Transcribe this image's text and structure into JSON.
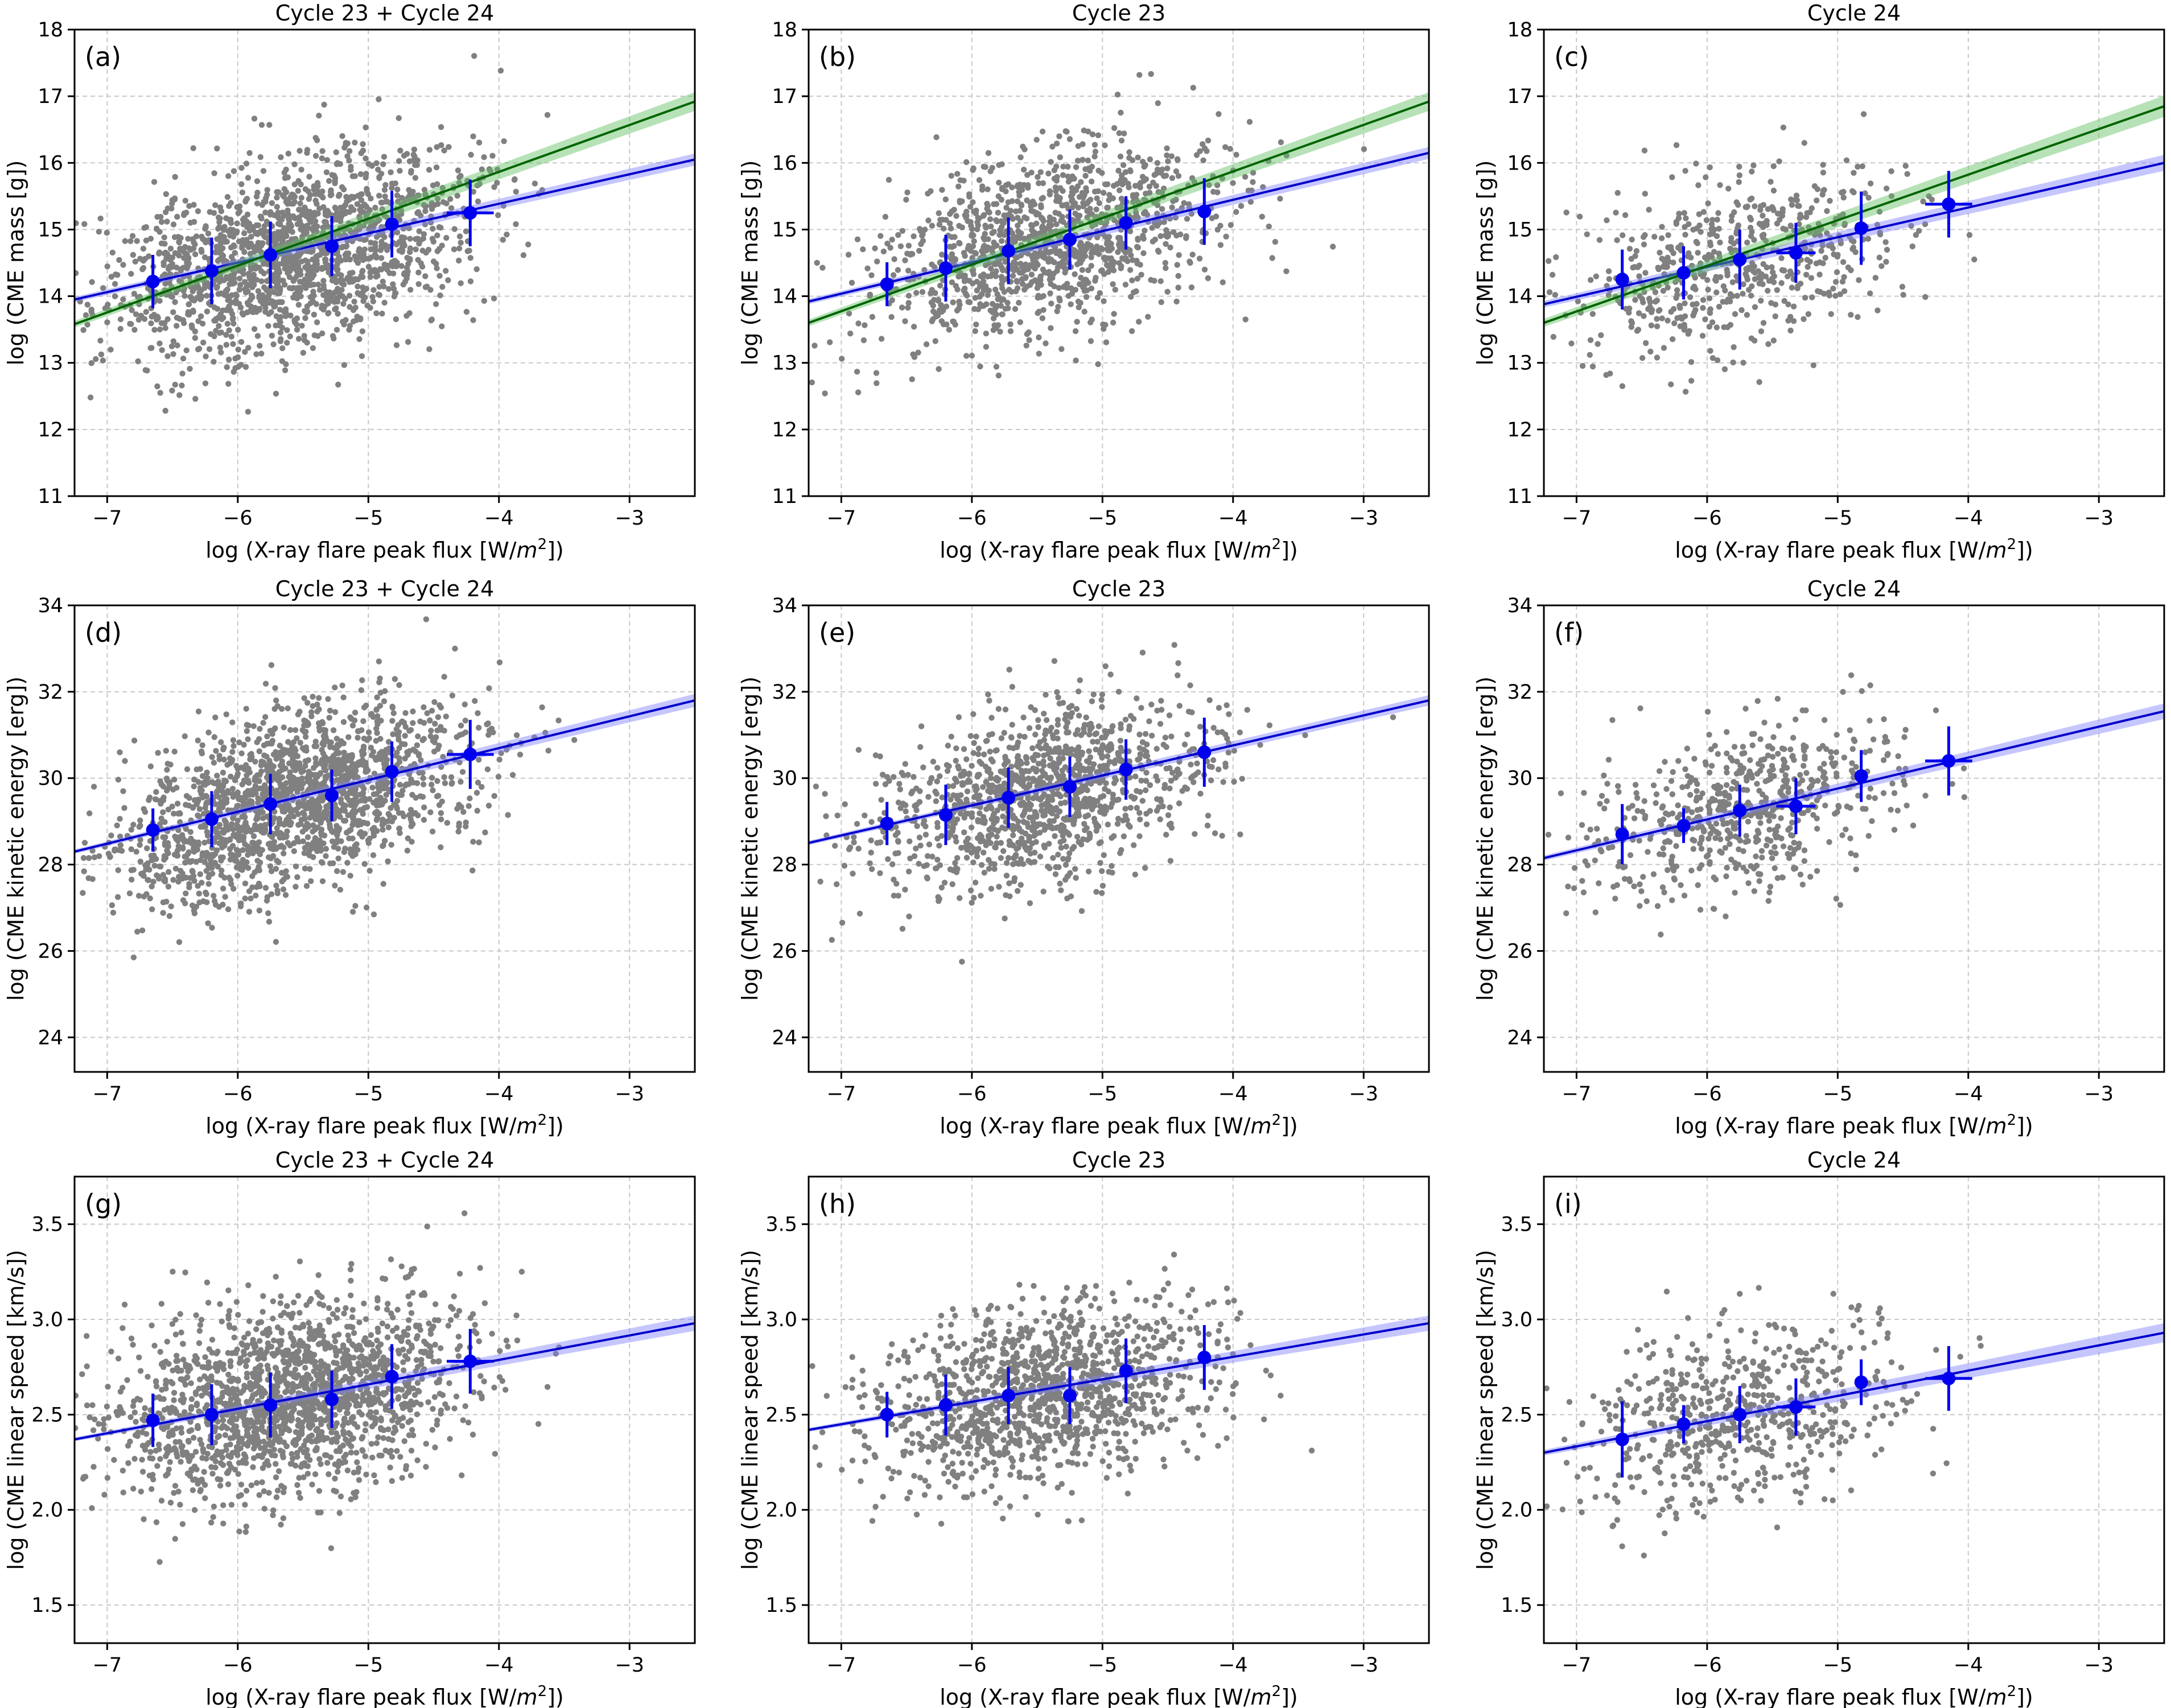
{
  "figure": {
    "colors": {
      "scatter": "#808080",
      "binned": "#0000ee",
      "fit_blue": "#0000cc",
      "band_blue": "#8080ff",
      "fit_green": "#006400",
      "band_green": "#5fbf5f"
    }
  },
  "chart_data": [
    {
      "type": "scatter",
      "panel": "(a)",
      "title": "Cycle 23 + Cycle 24",
      "xlabel": "log (X-ray flare peak flux [W/m²])",
      "ylabel": "log (CME mass [g])",
      "xlim": [
        -7.25,
        -2.5
      ],
      "ylim": [
        11,
        18
      ],
      "xticks": [
        -7,
        -6,
        -5,
        -4,
        -3
      ],
      "xtick_labels": [
        "−7",
        "−6",
        "−5",
        "−4",
        "−3"
      ],
      "yticks": [
        11,
        12,
        13,
        14,
        15,
        16,
        17,
        18
      ],
      "ytick_labels": [
        "11",
        "12",
        "13",
        "14",
        "15",
        "16",
        "17",
        "18"
      ],
      "scatter": {
        "n": 1800,
        "x_mean": -5.6,
        "x_sd": 0.68,
        "slope": 0.44,
        "intercept": 17.1,
        "noise_sd": 0.68,
        "seed": 11
      },
      "binned": {
        "x": [
          -6.65,
          -6.2,
          -5.75,
          -5.28,
          -4.82,
          -4.22
        ],
        "y": [
          14.22,
          14.38,
          14.62,
          14.75,
          15.08,
          15.25
        ],
        "yerr": [
          0.4,
          0.5,
          0.5,
          0.45,
          0.5,
          0.5
        ],
        "xerr": [
          0.0,
          0.0,
          0.0,
          0.0,
          0.0,
          0.18
        ]
      },
      "fits": [
        {
          "name": "fit 1",
          "color": "blue",
          "x": [
            -7.25,
            -2.5
          ],
          "y": [
            13.95,
            16.05
          ],
          "band": [
            0.04,
            0.09
          ]
        },
        {
          "name": "fit 2",
          "color": "green",
          "x": [
            -7.25,
            -2.5
          ],
          "y": [
            13.58,
            16.92
          ],
          "band": [
            0.05,
            0.14
          ]
        }
      ]
    },
    {
      "type": "scatter",
      "panel": "(b)",
      "title": "Cycle 23",
      "xlabel": "log (X-ray flare peak flux [W/m²])",
      "ylabel": "log (CME mass [g])",
      "xlim": [
        -7.25,
        -2.5
      ],
      "ylim": [
        11,
        18
      ],
      "xticks": [
        -7,
        -6,
        -5,
        -4,
        -3
      ],
      "xtick_labels": [
        "−7",
        "−6",
        "−5",
        "−4",
        "−3"
      ],
      "yticks": [
        11,
        12,
        13,
        14,
        15,
        16,
        17,
        18
      ],
      "ytick_labels": [
        "11",
        "12",
        "13",
        "14",
        "15",
        "16",
        "17",
        "18"
      ],
      "scatter": {
        "n": 1250,
        "x_mean": -5.45,
        "x_sd": 0.65,
        "slope": 0.46,
        "intercept": 17.3,
        "noise_sd": 0.66,
        "seed": 23
      },
      "binned": {
        "x": [
          -6.65,
          -6.2,
          -5.72,
          -5.25,
          -4.82,
          -4.22
        ],
        "y": [
          14.18,
          14.42,
          14.68,
          14.85,
          15.1,
          15.27
        ],
        "yerr": [
          0.33,
          0.5,
          0.5,
          0.45,
          0.4,
          0.5
        ],
        "xerr": [
          0.0,
          0.0,
          0.0,
          0.0,
          0.0,
          0.0
        ]
      },
      "fits": [
        {
          "name": "fit 1",
          "color": "blue",
          "x": [
            -7.25,
            -2.5
          ],
          "y": [
            13.92,
            16.15
          ],
          "band": [
            0.04,
            0.09
          ]
        },
        {
          "name": "fit 2",
          "color": "green",
          "x": [
            -7.25,
            -2.5
          ],
          "y": [
            13.6,
            16.92
          ],
          "band": [
            0.05,
            0.14
          ]
        }
      ]
    },
    {
      "type": "scatter",
      "panel": "(c)",
      "title": "Cycle 24",
      "xlabel": "log (X-ray flare peak flux [W/m²])",
      "ylabel": "log (CME mass [g])",
      "xlim": [
        -7.25,
        -2.5
      ],
      "ylim": [
        11,
        18
      ],
      "xticks": [
        -7,
        -6,
        -5,
        -4,
        -3
      ],
      "xtick_labels": [
        "−7",
        "−6",
        "−5",
        "−4",
        "−3"
      ],
      "yticks": [
        11,
        12,
        13,
        14,
        15,
        16,
        17,
        18
      ],
      "ytick_labels": [
        "11",
        "12",
        "13",
        "14",
        "15",
        "16",
        "17",
        "18"
      ],
      "scatter": {
        "n": 620,
        "x_mean": -5.75,
        "x_sd": 0.62,
        "slope": 0.44,
        "intercept": 17.05,
        "noise_sd": 0.64,
        "seed": 37
      },
      "binned": {
        "x": [
          -6.65,
          -6.18,
          -5.75,
          -5.32,
          -4.82,
          -4.15
        ],
        "y": [
          14.25,
          14.35,
          14.55,
          14.65,
          15.02,
          15.38
        ],
        "yerr": [
          0.45,
          0.4,
          0.45,
          0.45,
          0.55,
          0.5
        ],
        "xerr": [
          0.0,
          0.0,
          0.0,
          0.15,
          0.0,
          0.18
        ]
      },
      "fits": [
        {
          "name": "fit 1",
          "color": "blue",
          "x": [
            -7.25,
            -2.5
          ],
          "y": [
            13.88,
            16.0
          ],
          "band": [
            0.05,
            0.12
          ]
        },
        {
          "name": "fit 2",
          "color": "green",
          "x": [
            -7.25,
            -2.5
          ],
          "y": [
            13.6,
            16.85
          ],
          "band": [
            0.06,
            0.16
          ]
        }
      ]
    },
    {
      "type": "scatter",
      "panel": "(d)",
      "title": "Cycle 23 + Cycle 24",
      "xlabel": "log (X-ray flare peak flux [W/m²])",
      "ylabel": "log (CME kinetic energy [erg])",
      "xlim": [
        -7.25,
        -2.5
      ],
      "ylim": [
        23.2,
        34
      ],
      "xticks": [
        -7,
        -6,
        -5,
        -4,
        -3
      ],
      "xtick_labels": [
        "−7",
        "−6",
        "−5",
        "−4",
        "−3"
      ],
      "yticks": [
        24,
        26,
        28,
        30,
        32,
        34
      ],
      "ytick_labels": [
        "24",
        "26",
        "28",
        "30",
        "32",
        "34"
      ],
      "scatter": {
        "n": 1800,
        "x_mean": -5.6,
        "x_sd": 0.68,
        "slope": 0.75,
        "intercept": 33.6,
        "noise_sd": 1.0,
        "seed": 51
      },
      "binned": {
        "x": [
          -6.65,
          -6.2,
          -5.75,
          -5.28,
          -4.82,
          -4.22
        ],
        "y": [
          28.8,
          29.05,
          29.4,
          29.6,
          30.15,
          30.55
        ],
        "yerr": [
          0.5,
          0.65,
          0.7,
          0.6,
          0.7,
          0.8
        ],
        "xerr": [
          0.0,
          0.0,
          0.0,
          0.0,
          0.0,
          0.18
        ]
      },
      "fits": [
        {
          "name": "fit 1",
          "color": "blue",
          "x": [
            -7.25,
            -2.5
          ],
          "y": [
            28.3,
            31.8
          ],
          "band": [
            0.05,
            0.15
          ]
        }
      ]
    },
    {
      "type": "scatter",
      "panel": "(e)",
      "title": "Cycle 23",
      "xlabel": "log (X-ray flare peak flux [W/m²])",
      "ylabel": "log (CME kinetic energy [erg])",
      "xlim": [
        -7.25,
        -2.5
      ],
      "ylim": [
        23.2,
        34
      ],
      "xticks": [
        -7,
        -6,
        -5,
        -4,
        -3
      ],
      "xtick_labels": [
        "−7",
        "−6",
        "−5",
        "−4",
        "−3"
      ],
      "yticks": [
        24,
        26,
        28,
        30,
        32,
        34
      ],
      "ytick_labels": [
        "24",
        "26",
        "28",
        "30",
        "32",
        "34"
      ],
      "scatter": {
        "n": 1250,
        "x_mean": -5.45,
        "x_sd": 0.65,
        "slope": 0.72,
        "intercept": 33.6,
        "noise_sd": 0.95,
        "seed": 67
      },
      "binned": {
        "x": [
          -6.65,
          -6.2,
          -5.72,
          -5.25,
          -4.82,
          -4.22
        ],
        "y": [
          28.95,
          29.15,
          29.55,
          29.8,
          30.2,
          30.6
        ],
        "yerr": [
          0.5,
          0.7,
          0.7,
          0.7,
          0.7,
          0.8
        ],
        "xerr": [
          0.0,
          0.0,
          0.0,
          0.0,
          0.0,
          0.0
        ]
      },
      "fits": [
        {
          "name": "fit 1",
          "color": "blue",
          "x": [
            -7.25,
            -2.5
          ],
          "y": [
            28.5,
            31.8
          ],
          "band": [
            0.05,
            0.12
          ]
        }
      ]
    },
    {
      "type": "scatter",
      "panel": "(f)",
      "title": "Cycle 24",
      "xlabel": "log (X-ray flare peak flux [W/m²])",
      "ylabel": "log (CME kinetic energy [erg])",
      "xlim": [
        -7.25,
        -2.5
      ],
      "ylim": [
        23.2,
        34
      ],
      "xticks": [
        -7,
        -6,
        -5,
        -4,
        -3
      ],
      "xtick_labels": [
        "−7",
        "−6",
        "−5",
        "−4",
        "−3"
      ],
      "yticks": [
        24,
        26,
        28,
        30,
        32,
        34
      ],
      "ytick_labels": [
        "24",
        "26",
        "28",
        "30",
        "32",
        "34"
      ],
      "scatter": {
        "n": 620,
        "x_mean": -5.75,
        "x_sd": 0.62,
        "slope": 0.72,
        "intercept": 33.4,
        "noise_sd": 0.95,
        "seed": 79
      },
      "binned": {
        "x": [
          -6.65,
          -6.18,
          -5.75,
          -5.32,
          -4.82,
          -4.15
        ],
        "y": [
          28.7,
          28.9,
          29.25,
          29.35,
          30.05,
          30.4
        ],
        "yerr": [
          0.7,
          0.4,
          0.6,
          0.65,
          0.6,
          0.8
        ],
        "xerr": [
          0.0,
          0.0,
          0.0,
          0.15,
          0.0,
          0.18
        ]
      },
      "fits": [
        {
          "name": "fit 1",
          "color": "blue",
          "x": [
            -7.25,
            -2.5
          ],
          "y": [
            28.15,
            31.55
          ],
          "band": [
            0.06,
            0.18
          ]
        }
      ]
    },
    {
      "type": "scatter",
      "panel": "(g)",
      "title": "Cycle 23 + Cycle 24",
      "xlabel": "log (X-ray flare peak flux [W/m²])",
      "ylabel": "log (CME linear speed [km/s])",
      "xlim": [
        -7.25,
        -2.5
      ],
      "ylim": [
        1.3,
        3.75
      ],
      "xticks": [
        -7,
        -6,
        -5,
        -4,
        -3
      ],
      "xtick_labels": [
        "−7",
        "−6",
        "−5",
        "−4",
        "−3"
      ],
      "yticks": [
        1.5,
        2.0,
        2.5,
        3.0,
        3.5
      ],
      "ytick_labels": [
        "1.5",
        "2.0",
        "2.5",
        "3.0",
        "3.5"
      ],
      "scatter": {
        "n": 1800,
        "x_mean": -5.6,
        "x_sd": 0.68,
        "slope": 0.13,
        "intercept": 3.31,
        "noise_sd": 0.24,
        "seed": 91
      },
      "binned": {
        "x": [
          -6.65,
          -6.2,
          -5.75,
          -5.28,
          -4.82,
          -4.22
        ],
        "y": [
          2.47,
          2.5,
          2.55,
          2.58,
          2.7,
          2.78
        ],
        "yerr": [
          0.14,
          0.16,
          0.17,
          0.15,
          0.17,
          0.17
        ],
        "xerr": [
          0.0,
          0.0,
          0.0,
          0.0,
          0.0,
          0.18
        ]
      },
      "fits": [
        {
          "name": "fit 1",
          "color": "blue",
          "x": [
            -7.25,
            -2.5
          ],
          "y": [
            2.37,
            2.98
          ],
          "band": [
            0.01,
            0.04
          ]
        }
      ]
    },
    {
      "type": "scatter",
      "panel": "(h)",
      "title": "Cycle 23",
      "xlabel": "log (X-ray flare peak flux [W/m²])",
      "ylabel": "log (CME linear speed [km/s])",
      "xlim": [
        -7.25,
        -2.5
      ],
      "ylim": [
        1.3,
        3.75
      ],
      "xticks": [
        -7,
        -6,
        -5,
        -4,
        -3
      ],
      "xtick_labels": [
        "−7",
        "−6",
        "−5",
        "−4",
        "−3"
      ],
      "yticks": [
        1.5,
        2.0,
        2.5,
        3.0,
        3.5
      ],
      "ytick_labels": [
        "1.5",
        "2.0",
        "2.5",
        "3.0",
        "3.5"
      ],
      "scatter": {
        "n": 1250,
        "x_mean": -5.45,
        "x_sd": 0.65,
        "slope": 0.12,
        "intercept": 3.27,
        "noise_sd": 0.23,
        "seed": 103
      },
      "binned": {
        "x": [
          -6.65,
          -6.2,
          -5.72,
          -5.25,
          -4.82,
          -4.22
        ],
        "y": [
          2.5,
          2.55,
          2.6,
          2.6,
          2.73,
          2.8
        ],
        "yerr": [
          0.12,
          0.16,
          0.15,
          0.15,
          0.17,
          0.17
        ],
        "xerr": [
          0.0,
          0.0,
          0.0,
          0.0,
          0.0,
          0.0
        ]
      },
      "fits": [
        {
          "name": "fit 1",
          "color": "blue",
          "x": [
            -7.25,
            -2.5
          ],
          "y": [
            2.42,
            2.98
          ],
          "band": [
            0.01,
            0.04
          ]
        }
      ]
    },
    {
      "type": "scatter",
      "panel": "(i)",
      "title": "Cycle 24",
      "xlabel": "log (X-ray flare peak flux [W/m²])",
      "ylabel": "log (CME linear speed [km/s])",
      "xlim": [
        -7.25,
        -2.5
      ],
      "ylim": [
        1.3,
        3.75
      ],
      "xticks": [
        -7,
        -6,
        -5,
        -4,
        -3
      ],
      "xtick_labels": [
        "−7",
        "−6",
        "−5",
        "−4",
        "−3"
      ],
      "yticks": [
        1.5,
        2.0,
        2.5,
        3.0,
        3.5
      ],
      "ytick_labels": [
        "1.5",
        "2.0",
        "2.5",
        "3.0",
        "3.5"
      ],
      "scatter": {
        "n": 620,
        "x_mean": -5.75,
        "x_sd": 0.62,
        "slope": 0.13,
        "intercept": 3.27,
        "noise_sd": 0.24,
        "seed": 127
      },
      "binned": {
        "x": [
          -6.65,
          -6.18,
          -5.75,
          -5.32,
          -4.82,
          -4.15
        ],
        "y": [
          2.37,
          2.45,
          2.5,
          2.54,
          2.67,
          2.69
        ],
        "yerr": [
          0.2,
          0.1,
          0.15,
          0.15,
          0.12,
          0.17
        ],
        "xerr": [
          0.0,
          0.0,
          0.0,
          0.15,
          0.0,
          0.18
        ]
      },
      "fits": [
        {
          "name": "fit 1",
          "color": "blue",
          "x": [
            -7.25,
            -2.5
          ],
          "y": [
            2.3,
            2.93
          ],
          "band": [
            0.015,
            0.05
          ]
        }
      ]
    }
  ]
}
